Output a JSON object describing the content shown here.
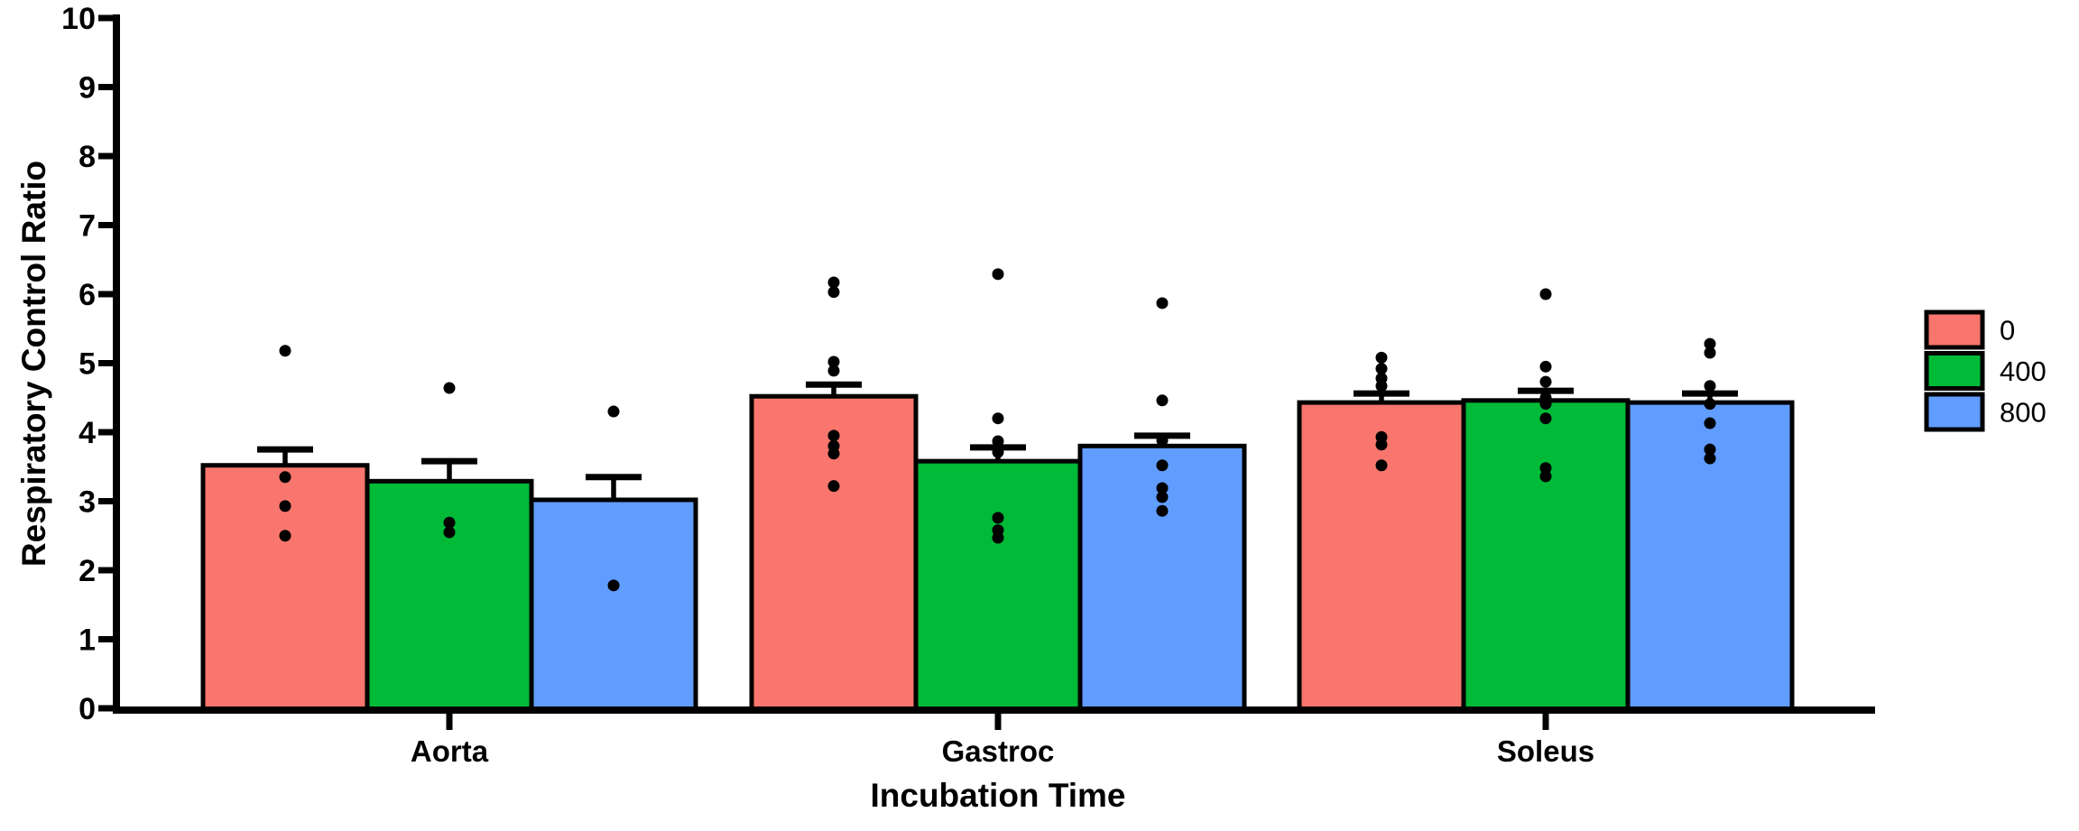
{
  "chart_data": {
    "type": "bar",
    "title": "",
    "ylabel": "Respiratory Control Ratio",
    "xlabel": "Incubation Time",
    "ylim": [
      0,
      10
    ],
    "ytick_step": 1,
    "yticks": [
      0,
      1,
      2,
      3,
      4,
      5,
      6,
      7,
      8,
      9,
      10
    ],
    "grid": false,
    "axis_color": "#000000",
    "marker_color": "#000000",
    "error_bar_style": "upper SEM whisker with cap",
    "legend_position": "right-outside",
    "categories": [
      "Aorta",
      "Gastroc",
      "Soleus"
    ],
    "series": [
      {
        "name": "0",
        "color": "#F8766D",
        "means": [
          3.52,
          4.52,
          4.43
        ],
        "err_top": [
          3.75,
          4.69,
          4.56
        ],
        "points": [
          [
            5.18,
            3.35,
            2.93,
            2.5
          ],
          [
            6.17,
            6.03,
            5.02,
            4.89,
            3.95,
            3.8,
            3.69,
            3.22
          ],
          [
            5.08,
            4.92,
            4.78,
            4.67,
            3.93,
            3.82,
            3.52
          ]
        ]
      },
      {
        "name": "400",
        "color": "#00BA38",
        "means": [
          3.29,
          3.58,
          4.46
        ],
        "err_top": [
          3.58,
          3.78,
          4.6
        ],
        "points": [
          [
            4.64,
            2.69,
            2.55
          ],
          [
            6.29,
            4.2,
            3.87,
            3.71,
            2.76,
            2.58,
            2.47
          ],
          [
            6.0,
            4.95,
            4.73,
            4.5,
            4.41,
            4.2,
            3.48,
            3.36
          ]
        ]
      },
      {
        "name": "800",
        "color": "#619CFF",
        "means": [
          3.02,
          3.8,
          4.43
        ],
        "err_top": [
          3.35,
          3.95,
          4.56
        ],
        "points": [
          [
            4.3,
            1.78
          ],
          [
            5.87,
            4.46,
            3.88,
            3.52,
            3.19,
            3.06,
            2.86
          ],
          [
            5.28,
            5.15,
            4.67,
            4.41,
            4.13,
            3.75,
            3.62
          ]
        ]
      }
    ]
  }
}
